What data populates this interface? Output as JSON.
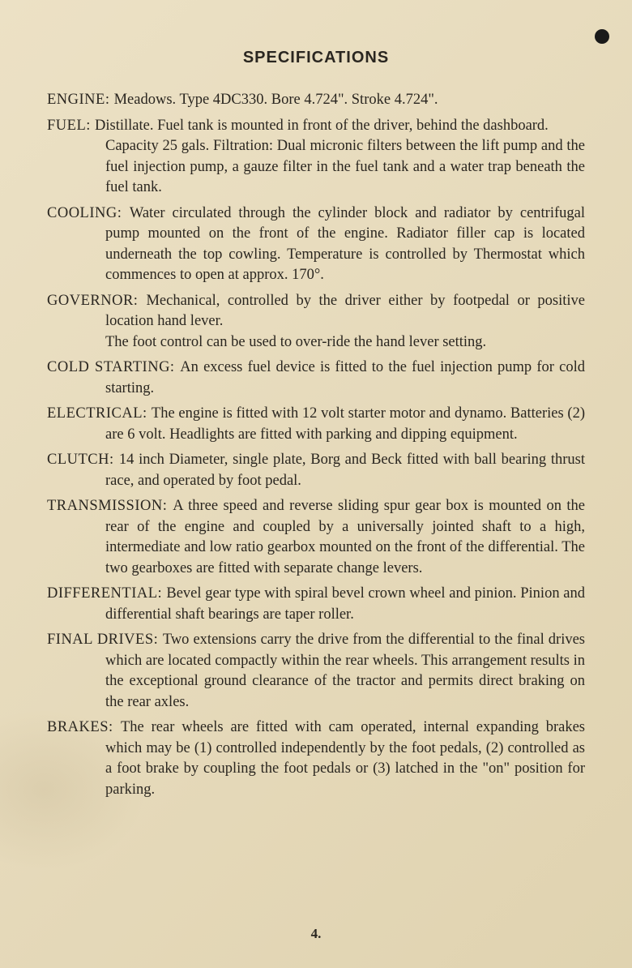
{
  "title": "SPECIFICATIONS",
  "page_number": "4.",
  "specs": [
    {
      "label": "ENGINE:",
      "text": "Meadows.  Type 4DC330.  Bore 4.724\".  Stroke 4.724\"."
    },
    {
      "label": "FUEL:",
      "text": "Distillate.  Fuel tank is mounted in front of the driver, behind the dashboard.",
      "cont": "Capacity 25 gals.  Filtration: Dual micronic filters between the lift pump and the fuel injection pump, a gauze filter in the fuel tank and a water trap beneath the fuel tank."
    },
    {
      "label": "COOLING:",
      "text": "Water circulated through the cylinder block and radiator by centrifugal pump mounted on the front of the engine.  Radiator filler cap is located underneath the top cowling.  Temperature is controlled by Thermostat which commences to open at approx. 170°."
    },
    {
      "label": "GOVERNOR:",
      "text": "Mechanical, controlled by the driver either by footpedal or positive location hand lever.",
      "cont": "The foot control can be used to over-ride the hand lever setting."
    },
    {
      "label": "COLD STARTING:",
      "text": "An excess fuel device is fitted to the fuel injection pump for cold starting."
    },
    {
      "label": "ELECTRICAL:",
      "text": "The engine is fitted with 12 volt starter motor and dynamo.  Batteries (2) are 6 volt.  Headlights are fitted with parking and dipping equipment."
    },
    {
      "label": "CLUTCH:",
      "text": "14 inch Diameter, single plate, Borg and Beck fitted with ball bearing thrust race, and operated by foot pedal."
    },
    {
      "label": "TRANSMISSION:",
      "text": "A three speed and reverse sliding spur gear box is mounted on the rear of the engine and coupled by a universally jointed shaft to a high, intermediate and low ratio gearbox mounted on the front of the differential. The two gearboxes are fitted with separate change levers."
    },
    {
      "label": "DIFFERENTIAL:",
      "text": "Bevel gear type with spiral bevel crown wheel and pinion.  Pinion and differential shaft bearings are taper roller."
    },
    {
      "label": "FINAL DRIVES:",
      "text": "Two extensions carry the drive from the differential to the final drives which are located compactly within the rear wheels.  This arrangement results in the exceptional ground clearance of the tractor and permits direct braking on the rear axles."
    },
    {
      "label": "BRAKES:",
      "text": "The rear wheels are fitted with cam operated, internal expanding brakes which may be (1) controlled independently by the foot pedals, (2) controlled as a foot brake by coupling the foot pedals or (3) latched in the \"on\" position for parking."
    }
  ]
}
